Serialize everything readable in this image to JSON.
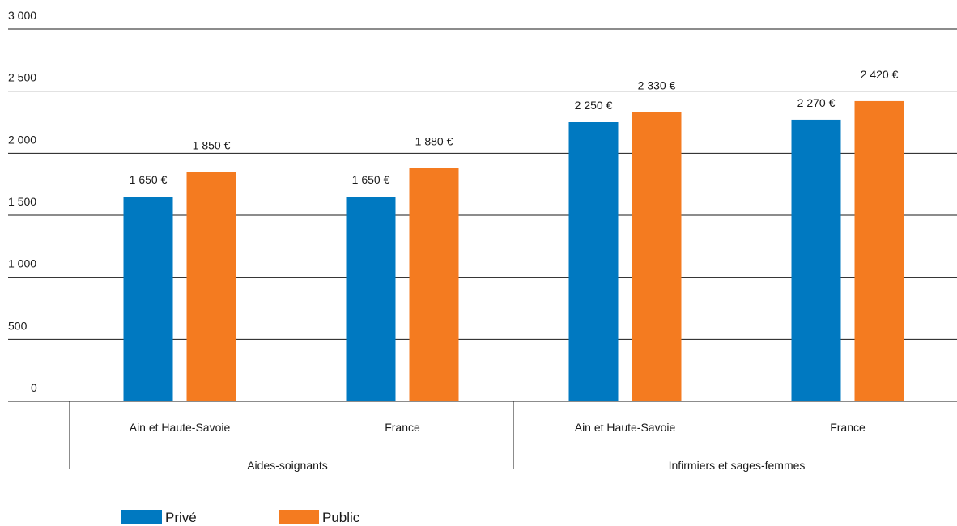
{
  "chart_data": {
    "type": "bar",
    "title": "",
    "xlabel": "",
    "ylabel": "",
    "ylim": [
      0,
      3000
    ],
    "yticks": [
      0,
      500,
      1000,
      1500,
      2000,
      2500,
      3000
    ],
    "ytick_labels": [
      "0",
      "500",
      "1 000",
      "1 500",
      "2 000",
      "2 500",
      "3 000"
    ],
    "grid": true,
    "legend_position": "bottom-left",
    "groups": [
      {
        "label": "Aides-soignants",
        "categories": [
          "Ain et Haute-Savoie",
          "France"
        ]
      },
      {
        "label": "Infirmiers et sages-femmes",
        "categories": [
          "Ain et Haute-Savoie",
          "France"
        ]
      }
    ],
    "series": [
      {
        "name": "Privé",
        "color": "#0079c1",
        "values": [
          1650,
          1650,
          2250,
          2270
        ],
        "labels": [
          "1 650 €",
          "1 650 €",
          "2 250 €",
          "2 270 €"
        ]
      },
      {
        "name": "Public",
        "color": "#f47b20",
        "values": [
          1850,
          1880,
          2330,
          2420
        ],
        "labels": [
          "1 850 €",
          "1 880 €",
          "2 330 €",
          "2 420 €"
        ]
      }
    ]
  }
}
